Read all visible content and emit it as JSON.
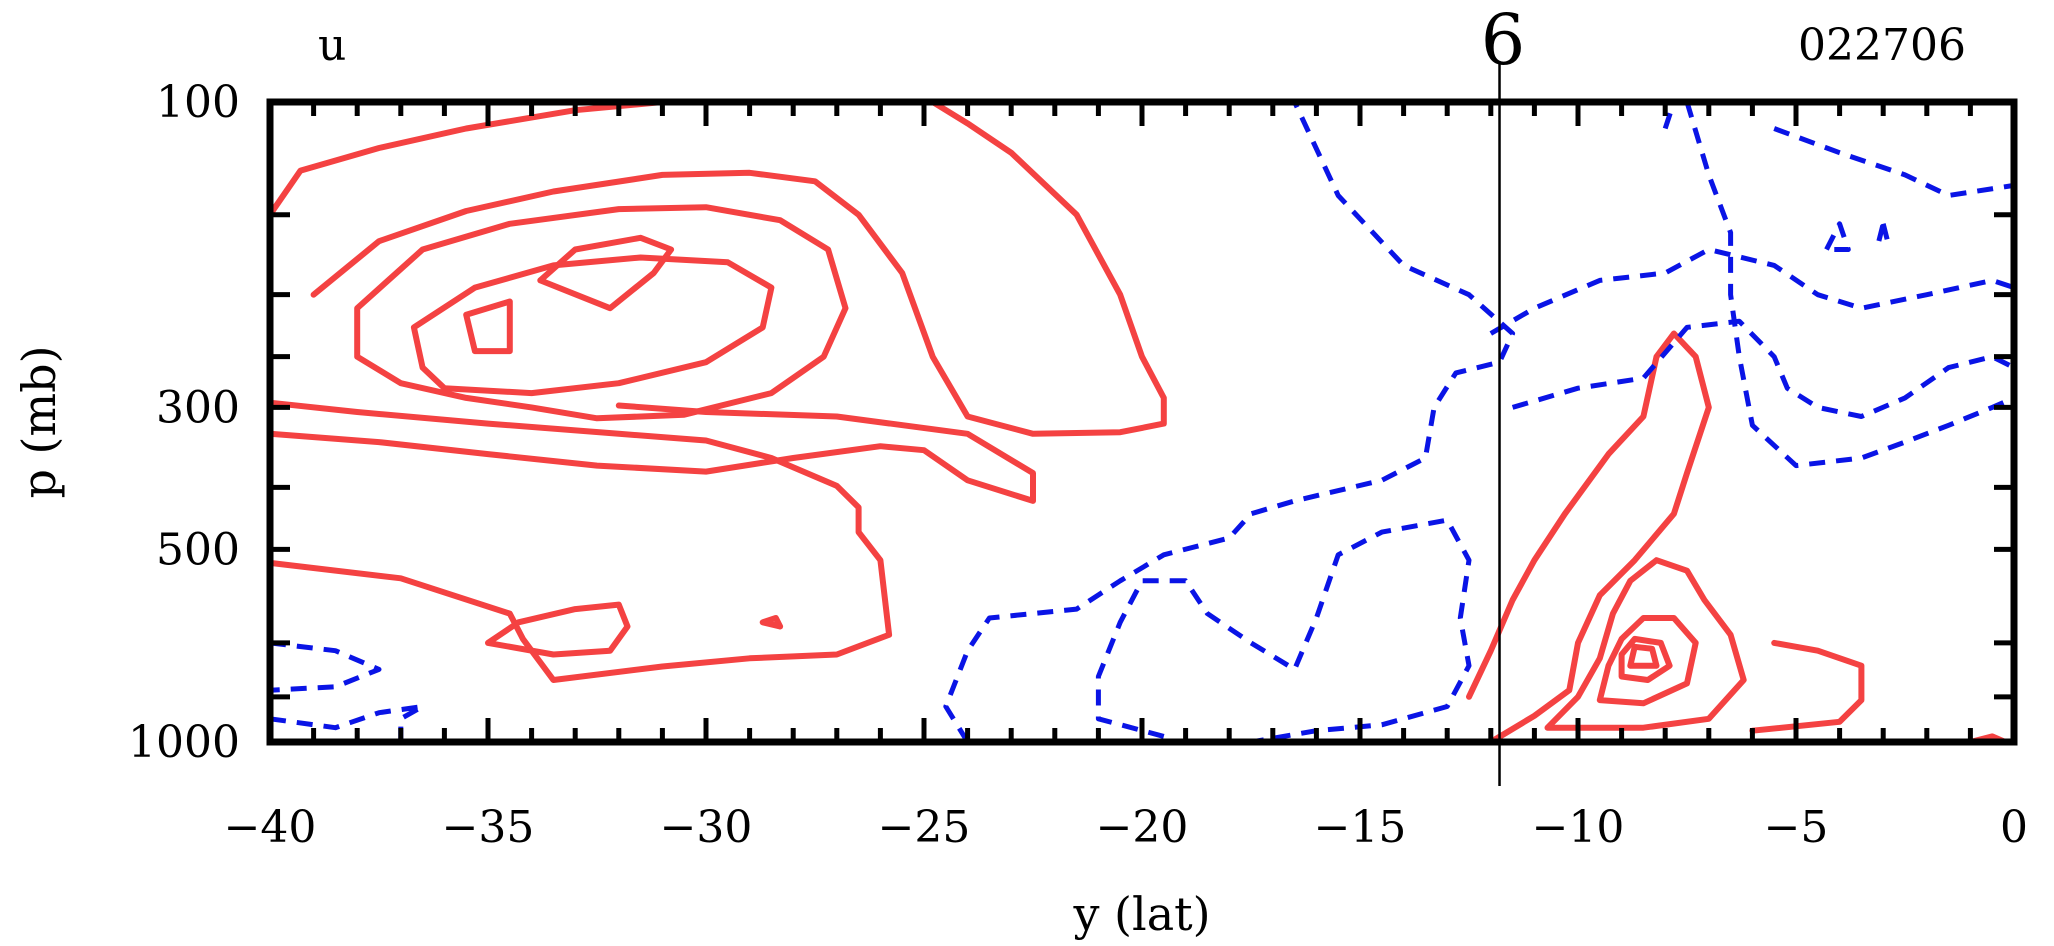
{
  "chart_data": {
    "type": "contour",
    "variable_label": "u",
    "panel_number": "6",
    "date_code": "022706",
    "xlabel": "y (lat)",
    "ylabel": "p (mb)",
    "xlim": [
      -40,
      0
    ],
    "ylim": [
      1000,
      100
    ],
    "x_ticks": [
      "−40",
      "−35",
      "−30",
      "−25",
      "−20",
      "−15",
      "−10",
      "−5",
      "0"
    ],
    "x_tick_values": [
      -40,
      -35,
      -30,
      -25,
      -20,
      -15,
      -10,
      -5,
      0
    ],
    "y_ticks": [
      "100",
      "300",
      "500",
      "1000"
    ],
    "y_tick_values": [
      100,
      300,
      500,
      1000
    ],
    "marker_line_lat": -11.8,
    "positive_color": "#f44242",
    "negative_color": "#0a14e6",
    "positive_contours": [
      [
        [
          -40,
          150
        ],
        [
          -39.3,
          128
        ],
        [
          -37.5,
          118
        ],
        [
          -35.5,
          110
        ],
        [
          -33,
          103
        ],
        [
          -31,
          100
        ]
      ],
      [
        [
          -39,
          200
        ],
        [
          -37.5,
          165
        ],
        [
          -35.5,
          148
        ],
        [
          -33.5,
          138
        ],
        [
          -31,
          130
        ],
        [
          -29,
          129
        ],
        [
          -27.5,
          133
        ],
        [
          -26.5,
          150
        ],
        [
          -25.5,
          185
        ],
        [
          -24.8,
          250
        ],
        [
          -24,
          310
        ],
        [
          -22.5,
          330
        ],
        [
          -20.5,
          328
        ],
        [
          -19.5,
          318
        ],
        [
          -19.5,
          290
        ],
        [
          -20,
          250
        ],
        [
          -20.5,
          200
        ],
        [
          -21.5,
          150
        ],
        [
          -23,
          120
        ],
        [
          -24,
          108
        ],
        [
          -24.8,
          100
        ]
      ],
      [
        [
          -38,
          250
        ],
        [
          -38,
          210
        ],
        [
          -36.5,
          170
        ],
        [
          -34.5,
          155
        ],
        [
          -32,
          147
        ],
        [
          -30,
          146
        ],
        [
          -28.3,
          153
        ],
        [
          -27.2,
          170
        ],
        [
          -26.8,
          210
        ],
        [
          -27.3,
          250
        ],
        [
          -28.5,
          285
        ],
        [
          -30.5,
          308
        ],
        [
          -32.5,
          312
        ],
        [
          -34,
          300
        ],
        [
          -35.5,
          290
        ],
        [
          -37,
          275
        ],
        [
          -38,
          250
        ]
      ],
      [
        [
          -36.5,
          260
        ],
        [
          -36.7,
          225
        ],
        [
          -35.3,
          195
        ],
        [
          -33.5,
          180
        ],
        [
          -31.5,
          175
        ],
        [
          -29.5,
          178
        ],
        [
          -28.5,
          195
        ],
        [
          -28.7,
          225
        ],
        [
          -30,
          255
        ],
        [
          -32,
          275
        ],
        [
          -34,
          285
        ],
        [
          -36,
          280
        ],
        [
          -36.5,
          260
        ]
      ],
      [
        [
          -35.3,
          245
        ],
        [
          -35.5,
          215
        ],
        [
          -34.5,
          205
        ],
        [
          -34.5,
          245
        ],
        [
          -35.3,
          245
        ]
      ],
      [
        [
          -33.8,
          190
        ],
        [
          -33,
          170
        ],
        [
          -31.5,
          163
        ],
        [
          -30.8,
          170
        ],
        [
          -31.2,
          185
        ],
        [
          -32.2,
          210
        ],
        [
          -33.8,
          190
        ]
      ],
      [
        [
          -40,
          295
        ],
        [
          -38,
          305
        ],
        [
          -35,
          318
        ],
        [
          -32,
          330
        ],
        [
          -30,
          338
        ],
        [
          -28.5,
          360
        ],
        [
          -27,
          398
        ],
        [
          -26.5,
          430
        ],
        [
          -26.5,
          470
        ],
        [
          -26,
          520
        ],
        [
          -25.8,
          680
        ],
        [
          -27,
          730
        ],
        [
          -29,
          740
        ],
        [
          -31,
          762
        ],
        [
          -33.5,
          800
        ],
        [
          -34.2,
          690
        ],
        [
          -34.5,
          630
        ],
        [
          -37,
          555
        ],
        [
          -40,
          525
        ]
      ],
      [
        [
          -40,
          330
        ],
        [
          -37.5,
          340
        ],
        [
          -35,
          355
        ],
        [
          -32.5,
          370
        ],
        [
          -30,
          378
        ],
        [
          -28,
          360
        ],
        [
          -26,
          345
        ],
        [
          -25,
          350
        ],
        [
          -24,
          390
        ],
        [
          -22.5,
          420
        ],
        [
          -22.5,
          380
        ],
        [
          -24,
          330
        ],
        [
          -27,
          310
        ],
        [
          -30,
          305
        ],
        [
          -32,
          298
        ]
      ],
      [
        [
          -35,
          700
        ],
        [
          -34.3,
          650
        ],
        [
          -33,
          620
        ],
        [
          -32,
          610
        ],
        [
          -31.8,
          660
        ],
        [
          -32.2,
          720
        ],
        [
          -33.5,
          730
        ],
        [
          -35,
          700
        ]
      ],
      [
        [
          -28.3,
          660
        ],
        [
          -28.4,
          640
        ],
        [
          -28.7,
          650
        ],
        [
          -28.3,
          660
        ]
      ],
      [
        [
          -12,
          1000
        ],
        [
          -11,
          910
        ],
        [
          -10.2,
          830
        ],
        [
          -10,
          700
        ],
        [
          -9.5,
          590
        ],
        [
          -8.7,
          520
        ],
        [
          -7.8,
          440
        ],
        [
          -7.5,
          380
        ],
        [
          -7,
          300
        ],
        [
          -7.3,
          250
        ],
        [
          -7.8,
          230
        ],
        [
          -8.2,
          250
        ],
        [
          -8.5,
          310
        ],
        [
          -9.3,
          355
        ],
        [
          -10.3,
          440
        ],
        [
          -11,
          520
        ],
        [
          -11.5,
          600
        ],
        [
          -12,
          720
        ],
        [
          -12.5,
          850
        ]
      ],
      [
        [
          -10.7,
          950
        ],
        [
          -10,
          850
        ],
        [
          -9.5,
          740
        ],
        [
          -9.2,
          630
        ],
        [
          -8.8,
          560
        ],
        [
          -8.2,
          520
        ],
        [
          -7.5,
          540
        ],
        [
          -7.1,
          600
        ],
        [
          -6.5,
          680
        ],
        [
          -6.2,
          800
        ],
        [
          -7,
          920
        ],
        [
          -8.5,
          950
        ],
        [
          -10.7,
          950
        ]
      ],
      [
        [
          -9.5,
          860
        ],
        [
          -9.3,
          760
        ],
        [
          -9,
          690
        ],
        [
          -8.5,
          640
        ],
        [
          -7.8,
          640
        ],
        [
          -7.3,
          700
        ],
        [
          -7.5,
          810
        ],
        [
          -8.5,
          870
        ],
        [
          -9.5,
          860
        ]
      ],
      [
        [
          -9,
          790
        ],
        [
          -9,
          730
        ],
        [
          -8.7,
          690
        ],
        [
          -8.1,
          700
        ],
        [
          -7.9,
          760
        ],
        [
          -8.4,
          800
        ],
        [
          -9,
          790
        ]
      ],
      [
        [
          -8.8,
          760
        ],
        [
          -8.7,
          710
        ],
        [
          -8.3,
          715
        ],
        [
          -8.2,
          760
        ],
        [
          -8.8,
          760
        ]
      ],
      [
        [
          -6,
          960
        ],
        [
          -4,
          930
        ],
        [
          -3.5,
          860
        ],
        [
          -3.5,
          760
        ],
        [
          -4.5,
          720
        ],
        [
          -5.5,
          700
        ]
      ],
      [
        [
          -1,
          1000
        ],
        [
          -0.5,
          980
        ],
        [
          -0.2,
          1000
        ]
      ]
    ],
    "negative_contours": [
      [
        [
          -40,
          700
        ],
        [
          -38.5,
          720
        ],
        [
          -37.5,
          770
        ],
        [
          -38.5,
          820
        ],
        [
          -40,
          830
        ]
      ],
      [
        [
          -40,
          920
        ],
        [
          -38.5,
          950
        ],
        [
          -37.5,
          900
        ],
        [
          -36.5,
          880
        ],
        [
          -37,
          920
        ],
        [
          -37,
          1000
        ]
      ],
      [
        [
          -24,
          1000
        ],
        [
          -24.5,
          880
        ],
        [
          -24,
          720
        ],
        [
          -23.5,
          640
        ],
        [
          -21.5,
          620
        ],
        [
          -20.5,
          560
        ],
        [
          -19.5,
          510
        ],
        [
          -18,
          480
        ],
        [
          -17.5,
          440
        ],
        [
          -16.5,
          420
        ],
        [
          -14.5,
          390
        ],
        [
          -13.5,
          360
        ],
        [
          -13.3,
          300
        ],
        [
          -12.8,
          265
        ],
        [
          -11.8,
          255
        ],
        [
          -11.5,
          230
        ],
        [
          -12.5,
          200
        ],
        [
          -14,
          180
        ],
        [
          -15.5,
          140
        ],
        [
          -16.5,
          100
        ]
      ],
      [
        [
          -19.5,
          980
        ],
        [
          -21,
          920
        ],
        [
          -21,
          790
        ],
        [
          -20.5,
          650
        ],
        [
          -20,
          560
        ],
        [
          -19,
          560
        ],
        [
          -18.5,
          630
        ],
        [
          -17.5,
          700
        ],
        [
          -16.5,
          770
        ],
        [
          -16,
          640
        ],
        [
          -15.5,
          510
        ],
        [
          -14.5,
          470
        ],
        [
          -13,
          450
        ],
        [
          -12.5,
          520
        ],
        [
          -12.7,
          640
        ],
        [
          -12.5,
          760
        ],
        [
          -13,
          880
        ],
        [
          -14.5,
          940
        ],
        [
          -16,
          960
        ],
        [
          -17.5,
          1000
        ]
      ],
      [
        [
          -11.5,
          300
        ],
        [
          -10,
          280
        ],
        [
          -8.5,
          270
        ],
        [
          -7.5,
          225
        ],
        [
          -6.3,
          220
        ],
        [
          -5.5,
          250
        ],
        [
          -5.2,
          280
        ],
        [
          -4.5,
          300
        ],
        [
          -3.5,
          310
        ],
        [
          -2.5,
          290
        ],
        [
          -1.5,
          260
        ],
        [
          -0.5,
          250
        ],
        [
          0,
          260
        ]
      ],
      [
        [
          -12,
          230
        ],
        [
          -11,
          210
        ],
        [
          -9.5,
          190
        ],
        [
          -8,
          185
        ],
        [
          -7,
          170
        ],
        [
          -5.5,
          180
        ],
        [
          -4.5,
          200
        ],
        [
          -3.5,
          210
        ],
        [
          -2,
          200
        ],
        [
          -0.5,
          190
        ],
        [
          0,
          195
        ]
      ],
      [
        [
          -5.5,
          110
        ],
        [
          -4,
          120
        ],
        [
          -2.5,
          130
        ],
        [
          -1.5,
          140
        ],
        [
          0,
          135
        ]
      ],
      [
        [
          -7.5,
          100
        ],
        [
          -7,
          130
        ],
        [
          -6.5,
          160
        ],
        [
          -6.5,
          200
        ],
        [
          -6.3,
          250
        ],
        [
          -6,
          320
        ],
        [
          -5,
          370
        ],
        [
          -3.5,
          360
        ],
        [
          -2.5,
          340
        ],
        [
          -1.5,
          320
        ],
        [
          -0.5,
          300
        ],
        [
          0,
          290
        ]
      ],
      [
        [
          -4.3,
          170
        ],
        [
          -4,
          155
        ],
        [
          -3.8,
          170
        ],
        [
          -4.3,
          170
        ]
      ],
      [
        [
          -3,
          155
        ],
        [
          -2.9,
          165
        ],
        [
          -3.1,
          165
        ],
        [
          -3,
          155
        ]
      ],
      [
        [
          -8,
          110
        ],
        [
          -7.8,
          100
        ]
      ]
    ]
  }
}
